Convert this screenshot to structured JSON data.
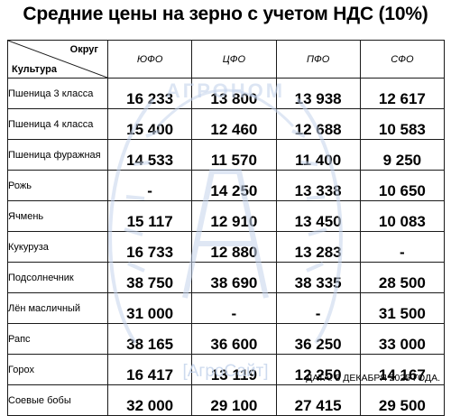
{
  "title": "Средние цены на зерно с учетом НДС (10%)",
  "header": {
    "district_label": "Округ",
    "crop_label": "Культура",
    "districts": [
      "ЮФО",
      "ЦФО",
      "ПФО",
      "СФО"
    ]
  },
  "rows": [
    {
      "crop": "Пшеница 3 класса",
      "values": [
        "16 233",
        "13 800",
        "13 938",
        "12 617"
      ]
    },
    {
      "crop": "Пшеница 4 класса",
      "values": [
        "15 400",
        "12 460",
        "12 688",
        "10 583"
      ]
    },
    {
      "crop": "Пшеница фуражная",
      "values": [
        "14 533",
        "11 570",
        "11 400",
        "9 250"
      ]
    },
    {
      "crop": "Рожь",
      "values": [
        "-",
        "14 250",
        "13 338",
        "10 650"
      ]
    },
    {
      "crop": "Ячмень",
      "values": [
        "15 117",
        "12 910",
        "13 450",
        "10 083"
      ]
    },
    {
      "crop": "Кукуруза",
      "values": [
        "16 733",
        "12 880",
        "13 283",
        "-"
      ]
    },
    {
      "crop": "Подсолнечник",
      "values": [
        "38 750",
        "38 690",
        "38 335",
        "28 500"
      ]
    },
    {
      "crop": "Лён масличный",
      "values": [
        "31 000",
        "-",
        "-",
        "31 500"
      ]
    },
    {
      "crop": "Рапс",
      "values": [
        "38 165",
        "36 600",
        "36 250",
        "33 000"
      ]
    },
    {
      "crop": "Горох",
      "values": [
        "16 417",
        "13 119",
        "12 250",
        "14 167"
      ]
    },
    {
      "crop": "Соевые бобы",
      "values": [
        "32 000",
        "29 100",
        "27 415",
        "29 500"
      ]
    }
  ],
  "watermark": {
    "text": "[АгроСайт]",
    "logo_text": "АГРОНОМ"
  },
  "date_text": "ДАТА: 5 ДЕКАБРЯ 2025 ГОДА.",
  "colors": {
    "text": "#000000",
    "border": "#1a1a1a",
    "watermark": "#c5d4ec"
  }
}
